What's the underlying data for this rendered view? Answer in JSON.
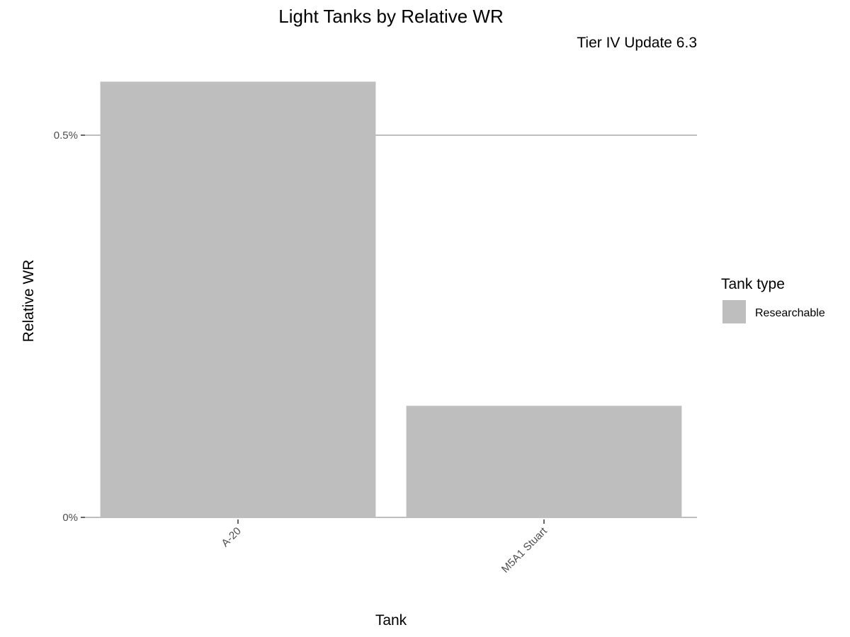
{
  "chart_data": {
    "type": "bar",
    "title": "Light Tanks by Relative WR",
    "subtitle": "Tier IV Update 6.3",
    "xlabel": "Tank",
    "ylabel": "Relative WR",
    "categories": [
      "A-20",
      "M5A1 Stuart"
    ],
    "values": [
      0.57,
      0.146
    ],
    "value_unit": "%",
    "ylim": [
      0,
      0.6
    ],
    "y_ticks": [
      {
        "value": 0,
        "label": "0%"
      },
      {
        "value": 0.5,
        "label": "0.5%"
      }
    ],
    "grid": true,
    "x_tick_rotation_deg": -45,
    "bar_color": "#bebebe",
    "grid_color": "#bebebe",
    "legend": {
      "title": "Tank type",
      "placement": "right",
      "entries": [
        {
          "label": "Researchable",
          "color": "#bebebe"
        }
      ]
    }
  }
}
